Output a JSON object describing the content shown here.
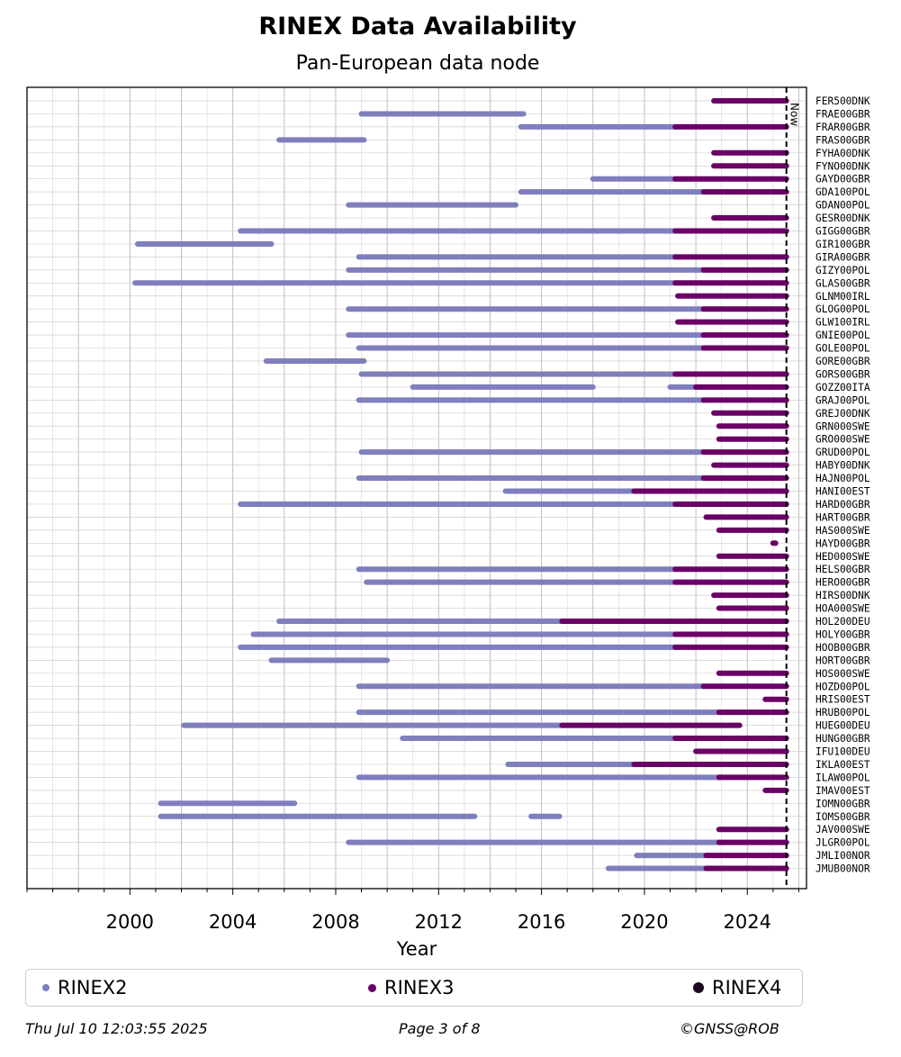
{
  "chart_data": {
    "type": "timeline",
    "title": "RINEX Data Availability",
    "subtitle": "Pan-European data node",
    "xlabel": "Year",
    "xlim": [
      1996.0,
      2026.3
    ],
    "xticks": [
      2000,
      2004,
      2008,
      2012,
      2016,
      2020,
      2024
    ],
    "now": 2025.52,
    "now_label": "Now",
    "grid": true,
    "legend_position": "bottom",
    "legend": [
      {
        "name": "RINEX2",
        "color": "#7f7fbd"
      },
      {
        "name": "RINEX3",
        "color": "#6a0066"
      },
      {
        "name": "RINEX4",
        "color": "#1c0620"
      }
    ],
    "stations": [
      {
        "name": "FER500DNK",
        "segments": [
          [
            2022.7,
            2025.52,
            3
          ]
        ]
      },
      {
        "name": "FRAE00GBR",
        "segments": [
          [
            2009.0,
            2015.3,
            2
          ]
        ]
      },
      {
        "name": "FRAR00GBR",
        "segments": [
          [
            2015.2,
            2021.2,
            2
          ],
          [
            2021.2,
            2025.52,
            3
          ]
        ]
      },
      {
        "name": "FRAS00GBR",
        "segments": [
          [
            2005.8,
            2009.1,
            2
          ]
        ]
      },
      {
        "name": "FYHA00DNK",
        "segments": [
          [
            2022.7,
            2025.52,
            3
          ]
        ]
      },
      {
        "name": "FYNO00DNK",
        "segments": [
          [
            2022.7,
            2025.52,
            3
          ]
        ]
      },
      {
        "name": "GAYD00GBR",
        "segments": [
          [
            2018.0,
            2021.2,
            2
          ],
          [
            2021.2,
            2025.52,
            3
          ]
        ]
      },
      {
        "name": "GDA100POL",
        "segments": [
          [
            2015.2,
            2022.3,
            2
          ],
          [
            2022.3,
            2025.52,
            3
          ]
        ]
      },
      {
        "name": "GDAN00POL",
        "segments": [
          [
            2008.5,
            2015.0,
            2
          ]
        ]
      },
      {
        "name": "GESR00DNK",
        "segments": [
          [
            2022.7,
            2025.52,
            3
          ]
        ]
      },
      {
        "name": "GIGG00GBR",
        "segments": [
          [
            2004.3,
            2021.2,
            2
          ],
          [
            2021.2,
            2025.52,
            3
          ]
        ]
      },
      {
        "name": "GIR100GBR",
        "segments": [
          [
            2000.3,
            2005.5,
            2
          ]
        ]
      },
      {
        "name": "GIRA00GBR",
        "segments": [
          [
            2008.9,
            2021.2,
            2
          ],
          [
            2021.2,
            2025.52,
            3
          ]
        ]
      },
      {
        "name": "GIZY00POL",
        "segments": [
          [
            2008.5,
            2022.3,
            2
          ],
          [
            2022.3,
            2025.52,
            3
          ]
        ]
      },
      {
        "name": "GLAS00GBR",
        "segments": [
          [
            2000.2,
            2021.2,
            2
          ],
          [
            2021.2,
            2025.52,
            3
          ]
        ]
      },
      {
        "name": "GLNM00IRL",
        "segments": [
          [
            2021.3,
            2025.52,
            3
          ]
        ]
      },
      {
        "name": "GLOG00POL",
        "segments": [
          [
            2008.5,
            2022.3,
            2
          ],
          [
            2022.3,
            2025.52,
            3
          ]
        ]
      },
      {
        "name": "GLW100IRL",
        "segments": [
          [
            2021.3,
            2025.52,
            3
          ]
        ]
      },
      {
        "name": "GNIE00POL",
        "segments": [
          [
            2008.5,
            2022.3,
            2
          ],
          [
            2022.3,
            2025.52,
            3
          ]
        ]
      },
      {
        "name": "GOLE00POL",
        "segments": [
          [
            2008.9,
            2022.3,
            2
          ],
          [
            2022.3,
            2025.52,
            3
          ]
        ]
      },
      {
        "name": "GORE00GBR",
        "segments": [
          [
            2005.3,
            2009.1,
            2
          ]
        ]
      },
      {
        "name": "GORS00GBR",
        "segments": [
          [
            2009.0,
            2021.2,
            2
          ],
          [
            2021.2,
            2025.52,
            3
          ]
        ]
      },
      {
        "name": "GOZZ00ITA",
        "segments": [
          [
            2011.0,
            2018.0,
            2
          ],
          [
            2021.0,
            2022.0,
            2
          ],
          [
            2022.0,
            2025.52,
            3
          ]
        ]
      },
      {
        "name": "GRAJ00POL",
        "segments": [
          [
            2008.9,
            2022.3,
            2
          ],
          [
            2022.3,
            2025.52,
            3
          ]
        ]
      },
      {
        "name": "GREJ00DNK",
        "segments": [
          [
            2022.7,
            2025.52,
            3
          ]
        ]
      },
      {
        "name": "GRN000SWE",
        "segments": [
          [
            2022.9,
            2025.52,
            3
          ]
        ]
      },
      {
        "name": "GRO000SWE",
        "segments": [
          [
            2022.9,
            2025.52,
            3
          ]
        ]
      },
      {
        "name": "GRUD00POL",
        "segments": [
          [
            2009.0,
            2022.3,
            2
          ],
          [
            2022.3,
            2025.52,
            3
          ]
        ]
      },
      {
        "name": "HABY00DNK",
        "segments": [
          [
            2022.7,
            2025.52,
            3
          ]
        ]
      },
      {
        "name": "HAJN00POL",
        "segments": [
          [
            2008.9,
            2022.3,
            2
          ],
          [
            2022.3,
            2025.52,
            3
          ]
        ]
      },
      {
        "name": "HANI00EST",
        "segments": [
          [
            2014.6,
            2019.6,
            2
          ],
          [
            2019.6,
            2025.52,
            3
          ]
        ]
      },
      {
        "name": "HARD00GBR",
        "segments": [
          [
            2004.3,
            2021.2,
            2
          ],
          [
            2021.2,
            2025.52,
            3
          ]
        ]
      },
      {
        "name": "HART00GBR",
        "segments": [
          [
            2022.4,
            2025.52,
            3
          ]
        ]
      },
      {
        "name": "HAS000SWE",
        "segments": [
          [
            2022.9,
            2025.52,
            3
          ]
        ]
      },
      {
        "name": "HAYD00GBR",
        "segments": [
          [
            2025.0,
            2025.1,
            3
          ]
        ]
      },
      {
        "name": "HED000SWE",
        "segments": [
          [
            2022.9,
            2025.52,
            3
          ]
        ]
      },
      {
        "name": "HELS00GBR",
        "segments": [
          [
            2008.9,
            2021.2,
            2
          ],
          [
            2021.2,
            2025.52,
            3
          ]
        ]
      },
      {
        "name": "HERO00GBR",
        "segments": [
          [
            2009.2,
            2021.2,
            2
          ],
          [
            2021.2,
            2025.52,
            3
          ]
        ]
      },
      {
        "name": "HIRS00DNK",
        "segments": [
          [
            2022.7,
            2025.52,
            3
          ]
        ]
      },
      {
        "name": "HOA000SWE",
        "segments": [
          [
            2022.9,
            2025.52,
            3
          ]
        ]
      },
      {
        "name": "HOL200DEU",
        "segments": [
          [
            2005.8,
            2016.8,
            2
          ],
          [
            2016.8,
            2025.52,
            3
          ]
        ]
      },
      {
        "name": "HOLY00GBR",
        "segments": [
          [
            2004.8,
            2021.2,
            2
          ],
          [
            2021.2,
            2025.52,
            3
          ]
        ]
      },
      {
        "name": "HOOB00GBR",
        "segments": [
          [
            2004.3,
            2021.2,
            2
          ],
          [
            2021.2,
            2025.52,
            3
          ]
        ]
      },
      {
        "name": "HORT00GBR",
        "segments": [
          [
            2005.5,
            2010.0,
            2
          ]
        ]
      },
      {
        "name": "HOS000SWE",
        "segments": [
          [
            2022.9,
            2025.52,
            3
          ]
        ]
      },
      {
        "name": "HOZD00POL",
        "segments": [
          [
            2008.9,
            2022.3,
            2
          ],
          [
            2022.3,
            2025.52,
            3
          ]
        ]
      },
      {
        "name": "HRIS00EST",
        "segments": [
          [
            2024.7,
            2025.52,
            3
          ]
        ]
      },
      {
        "name": "HRUB00POL",
        "segments": [
          [
            2008.9,
            2022.9,
            2
          ],
          [
            2022.9,
            2025.52,
            3
          ]
        ]
      },
      {
        "name": "HUEG00DEU",
        "segments": [
          [
            2002.1,
            2016.8,
            2
          ],
          [
            2016.8,
            2023.7,
            3
          ]
        ]
      },
      {
        "name": "HUNG00GBR",
        "segments": [
          [
            2010.6,
            2021.2,
            2
          ],
          [
            2021.2,
            2025.52,
            3
          ]
        ]
      },
      {
        "name": "IFU100DEU",
        "segments": [
          [
            2022.0,
            2025.52,
            3
          ]
        ]
      },
      {
        "name": "IKLA00EST",
        "segments": [
          [
            2014.7,
            2019.6,
            2
          ],
          [
            2019.6,
            2025.52,
            3
          ]
        ]
      },
      {
        "name": "ILAW00POL",
        "segments": [
          [
            2008.9,
            2022.9,
            2
          ],
          [
            2022.9,
            2025.52,
            3
          ]
        ]
      },
      {
        "name": "IMAV00EST",
        "segments": [
          [
            2024.7,
            2025.52,
            3
          ]
        ]
      },
      {
        "name": "IOMN00GBR",
        "segments": [
          [
            2001.2,
            2006.4,
            2
          ]
        ]
      },
      {
        "name": "IOMS00GBR",
        "segments": [
          [
            2001.2,
            2013.4,
            2
          ],
          [
            2015.6,
            2016.7,
            2
          ]
        ]
      },
      {
        "name": "JAV000SWE",
        "segments": [
          [
            2022.9,
            2025.52,
            3
          ]
        ]
      },
      {
        "name": "JLGR00POL",
        "segments": [
          [
            2008.5,
            2022.9,
            2
          ],
          [
            2022.9,
            2025.52,
            3
          ]
        ]
      },
      {
        "name": "JMLI00NOR",
        "segments": [
          [
            2019.7,
            2022.4,
            2
          ],
          [
            2022.4,
            2025.52,
            3
          ]
        ]
      },
      {
        "name": "JMUB00NOR",
        "segments": [
          [
            2018.6,
            2022.4,
            2
          ],
          [
            2022.4,
            2025.52,
            3
          ]
        ]
      }
    ]
  },
  "footer": {
    "timestamp": "Thu Jul 10 12:03:55 2025",
    "page": "Page 3 of 8",
    "copyright": "©GNSS@ROB"
  }
}
